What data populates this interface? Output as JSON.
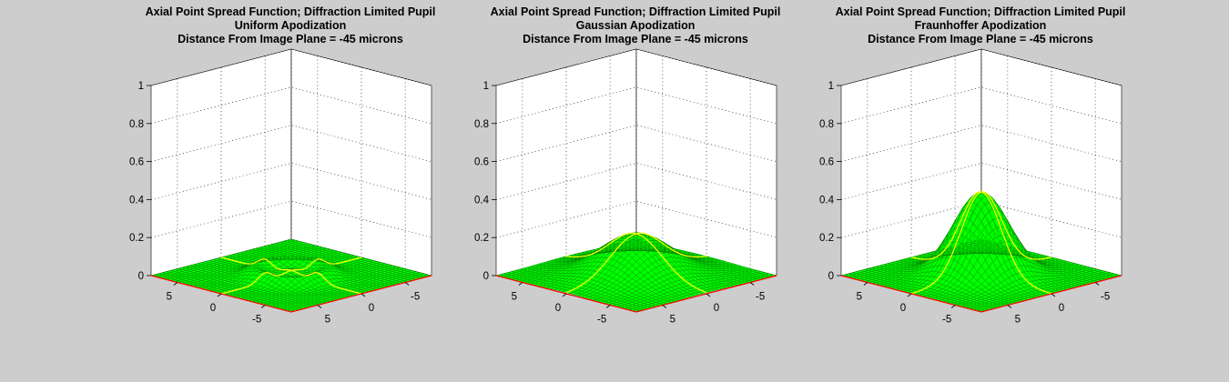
{
  "colors": {
    "background": "#cdcdcd",
    "axes_face": "#ffffff",
    "surface_fill": "#00ff00",
    "surface_mesh": "#007a00",
    "projection_line": "#ffff00",
    "base_edge": "#ff0000",
    "grid": "#000000"
  },
  "chart_data": [
    {
      "type": "surface",
      "title": [
        "Axial Point Spread Function; Diffraction Limited Pupil",
        "Uniform Apodization",
        "Distance From Image Plane = -45 microns"
      ],
      "zlim": [
        0,
        1
      ],
      "ztick_labels": [
        "0",
        "0.2",
        "0.4",
        "0.6",
        "0.8",
        "1"
      ],
      "x_tick_labels": [
        "5",
        "0",
        "-5"
      ],
      "y_tick_labels": [
        "5",
        "0",
        "-5"
      ],
      "xlim": [
        -8,
        8
      ],
      "ylim": [
        -8,
        8
      ],
      "grid": true,
      "peak_z": 0.05,
      "profile": "ring",
      "ring_radius": 3.0,
      "sigma": 1.6
    },
    {
      "type": "surface",
      "title": [
        "Axial Point Spread Function; Diffraction Limited Pupil",
        "Gaussian Apodization",
        "Distance From Image Plane = -45 microns"
      ],
      "zlim": [
        0,
        1
      ],
      "ztick_labels": [
        "0",
        "0.2",
        "0.4",
        "0.6",
        "0.8",
        "1"
      ],
      "x_tick_labels": [
        "5",
        "0",
        "-5"
      ],
      "y_tick_labels": [
        "5",
        "0",
        "-5"
      ],
      "xlim": [
        -8,
        8
      ],
      "ylim": [
        -8,
        8
      ],
      "grid": true,
      "peak_z": 0.22,
      "profile": "gaussian",
      "sigma": 3.0
    },
    {
      "type": "surface",
      "title": [
        "Axial Point Spread Function; Diffraction Limited Pupil",
        "Fraunhoffer Apodization",
        "Distance From Image Plane = -45 microns"
      ],
      "zlim": [
        0,
        1
      ],
      "ztick_labels": [
        "0",
        "0.2",
        "0.4",
        "0.6",
        "0.8",
        "1"
      ],
      "x_tick_labels": [
        "5",
        "0",
        "-5"
      ],
      "y_tick_labels": [
        "5",
        "0",
        "-5"
      ],
      "xlim": [
        -8,
        8
      ],
      "ylim": [
        -8,
        8
      ],
      "grid": true,
      "peak_z": 0.44,
      "profile": "gaussian",
      "sigma": 2.3
    }
  ]
}
